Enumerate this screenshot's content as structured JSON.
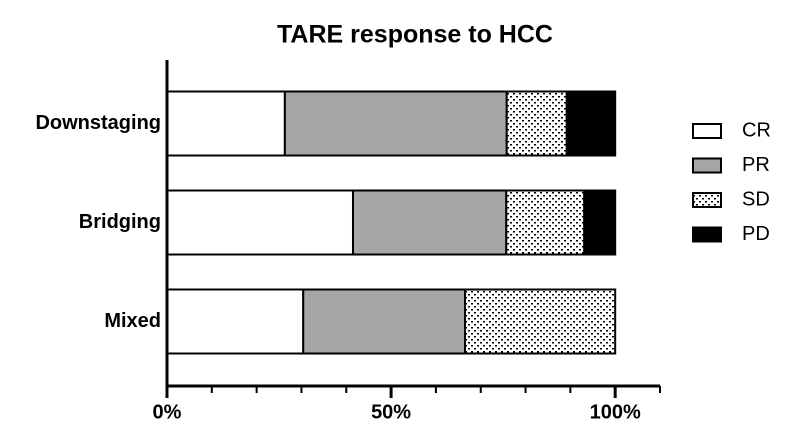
{
  "chart_data": {
    "type": "stacked-bar-horizontal",
    "title": "TARE response to HCC",
    "categories": [
      "Downstaging",
      "Bridging",
      "Mixed"
    ],
    "series": [
      {
        "name": "CR",
        "color": "#ffffff",
        "values": [
          26.3,
          41.5,
          30.4
        ]
      },
      {
        "name": "PR",
        "color": "#a6a6a6",
        "values": [
          49.5,
          34.2,
          36.1
        ]
      },
      {
        "name": "SD",
        "color": "#ffffff",
        "pattern": "dots",
        "values": [
          13.4,
          17.4,
          33.5
        ]
      },
      {
        "name": "PD",
        "color": "#000000",
        "values": [
          10.8,
          6.9,
          0
        ]
      }
    ],
    "xlim": [
      0,
      110
    ],
    "xticks": [
      {
        "value": 0,
        "label": "0%"
      },
      {
        "value": 50,
        "label": "50%"
      },
      {
        "value": 100,
        "label": "100%"
      }
    ],
    "xminorticks": [
      10,
      20,
      30,
      40,
      60,
      70,
      80,
      90,
      110
    ],
    "legend": "right"
  }
}
